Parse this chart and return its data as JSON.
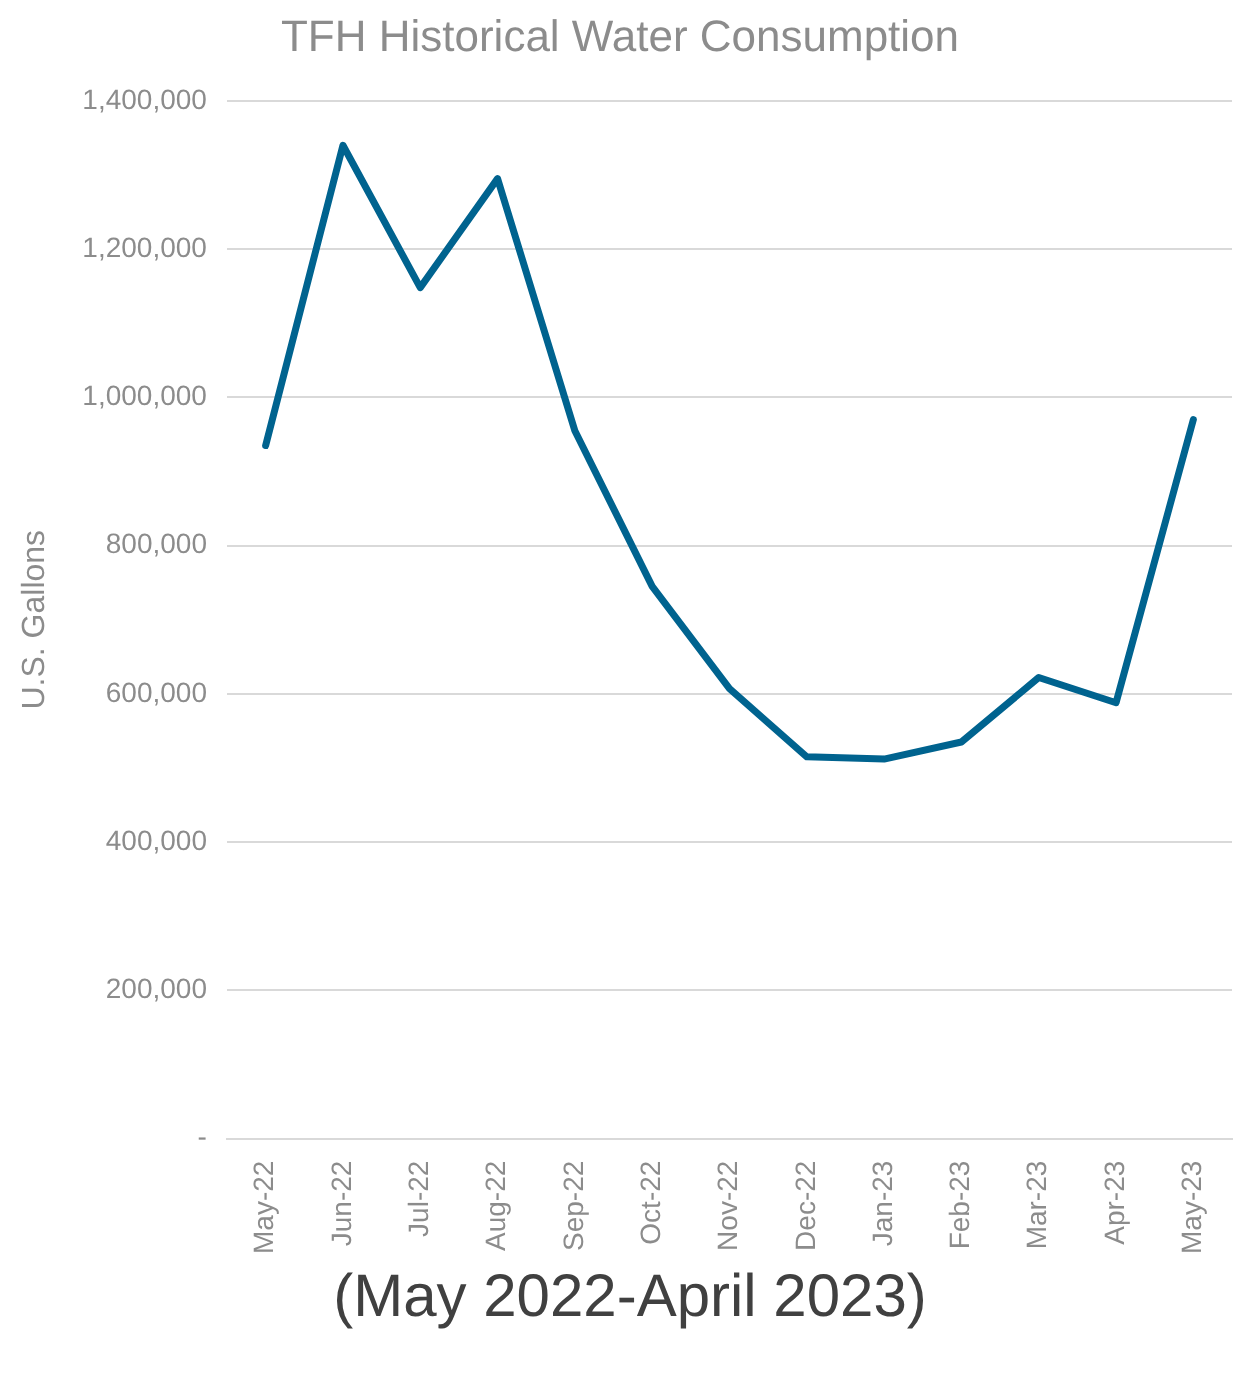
{
  "chart_data": {
    "type": "line",
    "title": "TFH Historical Water Consumption",
    "ylabel": "U.S. Gallons",
    "categories": [
      "May-22",
      "Jun-22",
      "Jul-22",
      "Aug-22",
      "Sep-22",
      "Oct-22",
      "Nov-22",
      "Dec-22",
      "Jan-23",
      "Feb-23",
      "Mar-23",
      "Apr-23",
      "May-23"
    ],
    "series": [
      {
        "color": "#00638f",
        "values": [
          935000,
          1340000,
          1148000,
          1295000,
          955000,
          745000,
          607000,
          515000,
          512000,
          535000,
          622000,
          588000,
          970000
        ]
      }
    ],
    "ylim": [
      0,
      1400000
    ],
    "yticks": [
      {
        "value": 0,
        "label": "-"
      },
      {
        "value": 200000,
        "label": "200,000"
      },
      {
        "value": 400000,
        "label": "400,000"
      },
      {
        "value": 600000,
        "label": "600,000"
      },
      {
        "value": 800000,
        "label": "800,000"
      },
      {
        "value": 1000000,
        "label": "1,000,000"
      },
      {
        "value": 1200000,
        "label": "1,200,000"
      },
      {
        "value": 1400000,
        "label": "1,400,000"
      }
    ],
    "grid": "y",
    "marker": "none",
    "line_style": "solid",
    "legend": false,
    "annotations": [
      "(May 2022-April 2023)"
    ]
  }
}
